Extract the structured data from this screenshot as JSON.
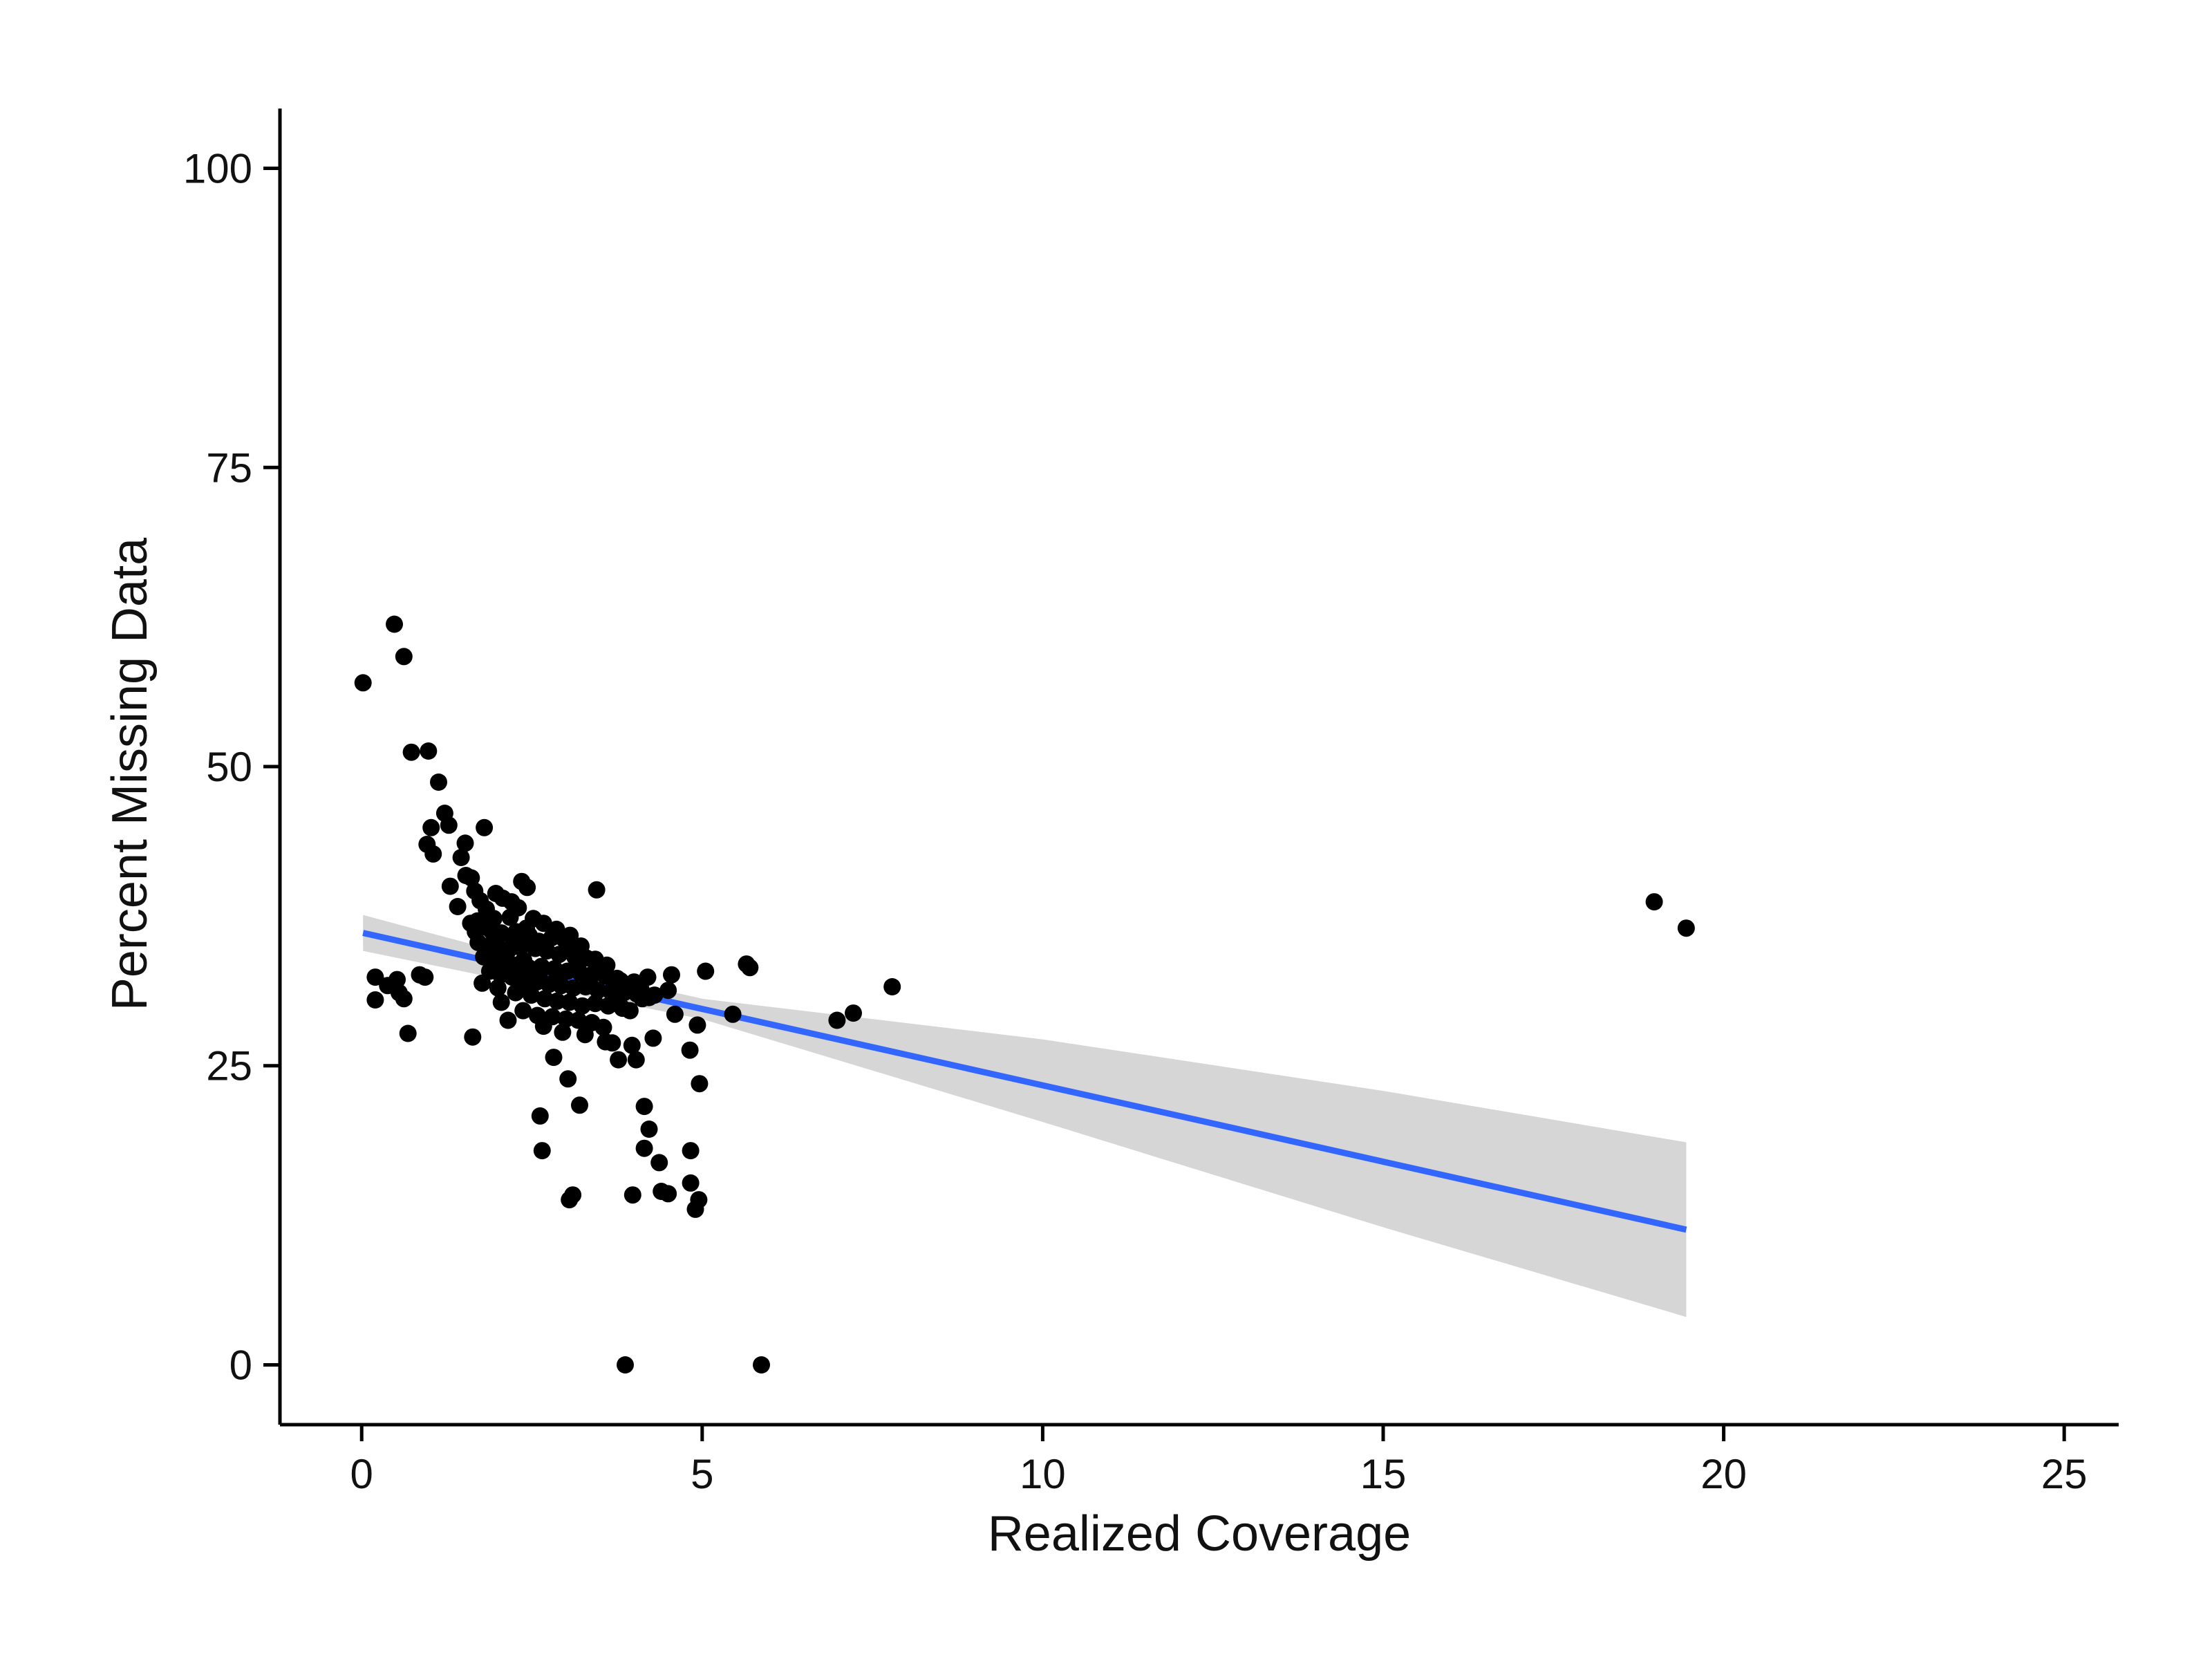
{
  "chart_data": {
    "type": "scatter",
    "title": "",
    "xlabel": "Realized Coverage",
    "ylabel": "Percent Missing Data",
    "xlim": [
      -1.2,
      25.8
    ],
    "ylim": [
      -5,
      105
    ],
    "x_ticks": [
      0,
      5,
      10,
      15,
      20,
      25
    ],
    "y_ticks": [
      0,
      25,
      50,
      75,
      100
    ],
    "grid": false,
    "legend": "none",
    "series": [
      {
        "kind": "points",
        "color": "#000000",
        "points": [
          [
            0.02,
            57.0
          ],
          [
            0.48,
            61.9
          ],
          [
            0.62,
            59.2
          ],
          [
            0.73,
            51.2
          ],
          [
            0.98,
            51.3
          ],
          [
            1.13,
            48.7
          ],
          [
            1.22,
            46.1
          ],
          [
            1.28,
            45.1
          ],
          [
            1.02,
            44.9
          ],
          [
            0.96,
            43.5
          ],
          [
            1.05,
            42.7
          ],
          [
            1.8,
            44.9
          ],
          [
            1.52,
            43.6
          ],
          [
            1.46,
            42.4
          ],
          [
            1.53,
            40.9
          ],
          [
            1.3,
            40.0
          ],
          [
            1.61,
            40.7
          ],
          [
            1.66,
            39.6
          ],
          [
            1.74,
            38.8
          ],
          [
            1.41,
            38.3
          ],
          [
            1.83,
            38.1
          ],
          [
            1.97,
            39.4
          ],
          [
            2.07,
            39.0
          ],
          [
            2.2,
            38.7
          ],
          [
            2.35,
            40.4
          ],
          [
            2.43,
            39.9
          ],
          [
            2.3,
            38.2
          ],
          [
            2.52,
            37.3
          ],
          [
            2.18,
            37.4
          ],
          [
            1.94,
            37.3
          ],
          [
            1.7,
            37.1
          ],
          [
            1.6,
            36.9
          ],
          [
            1.78,
            36.6
          ],
          [
            1.9,
            36.3
          ],
          [
            2.05,
            36.1
          ],
          [
            2.27,
            36.2
          ],
          [
            2.46,
            35.9
          ],
          [
            2.6,
            35.4
          ],
          [
            2.79,
            35.7
          ],
          [
            2.97,
            35.6
          ],
          [
            3.08,
            35.1
          ],
          [
            1.71,
            35.3
          ],
          [
            1.85,
            35.0
          ],
          [
            2.0,
            34.8
          ],
          [
            2.16,
            34.7
          ],
          [
            2.33,
            34.9
          ],
          [
            2.55,
            34.8
          ],
          [
            2.72,
            34.6
          ],
          [
            2.9,
            34.3
          ],
          [
            3.13,
            34.1
          ],
          [
            3.3,
            34.0
          ],
          [
            3.43,
            33.9
          ],
          [
            1.79,
            34.1
          ],
          [
            1.95,
            33.9
          ],
          [
            2.11,
            33.6
          ],
          [
            2.28,
            33.4
          ],
          [
            2.45,
            33.2
          ],
          [
            2.64,
            33.3
          ],
          [
            2.83,
            33.1
          ],
          [
            3.02,
            32.9
          ],
          [
            3.2,
            32.8
          ],
          [
            3.4,
            32.7
          ],
          [
            3.58,
            32.5
          ],
          [
            3.75,
            32.3
          ],
          [
            1.88,
            32.9
          ],
          [
            2.04,
            32.6
          ],
          [
            2.21,
            32.4
          ],
          [
            2.38,
            32.1
          ],
          [
            2.57,
            32.0
          ],
          [
            2.75,
            31.8
          ],
          [
            2.93,
            31.7
          ],
          [
            3.11,
            31.5
          ],
          [
            3.29,
            31.6
          ],
          [
            3.47,
            31.3
          ],
          [
            3.66,
            31.2
          ],
          [
            3.85,
            31.1
          ],
          [
            4.04,
            31.0
          ],
          [
            4.22,
            30.7
          ],
          [
            1.77,
            31.9
          ],
          [
            2.0,
            31.5
          ],
          [
            2.26,
            31.1
          ],
          [
            2.49,
            30.9
          ],
          [
            2.69,
            30.6
          ],
          [
            2.87,
            30.4
          ],
          [
            3.05,
            30.3
          ],
          [
            3.24,
            30.0
          ],
          [
            3.43,
            30.2
          ],
          [
            3.62,
            30.0
          ],
          [
            3.83,
            29.8
          ],
          [
            2.37,
            29.6
          ],
          [
            2.58,
            29.2
          ],
          [
            2.8,
            29.1
          ],
          [
            3.0,
            28.9
          ],
          [
            3.18,
            28.8
          ],
          [
            3.38,
            28.6
          ],
          [
            3.55,
            28.2
          ],
          [
            2.15,
            28.8
          ],
          [
            2.67,
            28.3
          ],
          [
            2.95,
            27.8
          ],
          [
            3.28,
            27.6
          ],
          [
            2.05,
            30.3
          ],
          [
            3.72,
            30.4
          ],
          [
            3.94,
            29.6
          ],
          [
            4.12,
            30.6
          ],
          [
            3.9,
            31.6
          ],
          [
            4.1,
            31.4
          ],
          [
            4.3,
            30.9
          ],
          [
            3.6,
            33.4
          ],
          [
            3.8,
            32.1
          ],
          [
            4.0,
            32.0
          ],
          [
            2.42,
            36.5
          ],
          [
            2.67,
            36.9
          ],
          [
            2.86,
            36.4
          ],
          [
            3.06,
            35.9
          ],
          [
            3.22,
            35.0
          ],
          [
            2.22,
            35.7
          ],
          [
            1.67,
            36.2
          ],
          [
            2.12,
            34.2
          ],
          [
            2.38,
            33.8
          ],
          [
            2.9,
            32.6
          ],
          [
            3.35,
            31.9
          ],
          [
            1.98,
            35.4
          ],
          [
            2.31,
            32.7
          ],
          [
            2.62,
            32.9
          ],
          [
            2.46,
            31.5
          ],
          [
            3.16,
            33.3
          ],
          [
            0.2,
            32.4
          ],
          [
            0.2,
            30.5
          ],
          [
            0.38,
            31.7
          ],
          [
            0.52,
            32.2
          ],
          [
            0.55,
            31.1
          ],
          [
            0.62,
            30.6
          ],
          [
            0.68,
            27.7
          ],
          [
            0.85,
            32.6
          ],
          [
            0.93,
            32.4
          ],
          [
            1.63,
            27.4
          ],
          [
            3.45,
            39.7
          ],
          [
            3.58,
            27.0
          ],
          [
            3.68,
            26.9
          ],
          [
            3.77,
            25.5
          ],
          [
            3.97,
            26.7
          ],
          [
            4.03,
            25.5
          ],
          [
            4.28,
            27.3
          ],
          [
            4.2,
            32.4
          ],
          [
            4.5,
            31.3
          ],
          [
            4.55,
            32.6
          ],
          [
            4.6,
            29.3
          ],
          [
            4.82,
            26.3
          ],
          [
            4.93,
            28.4
          ],
          [
            4.96,
            23.5
          ],
          [
            5.05,
            32.9
          ],
          [
            5.45,
            29.3
          ],
          [
            5.65,
            33.5
          ],
          [
            5.7,
            33.2
          ],
          [
            2.82,
            25.7
          ],
          [
            3.03,
            23.9
          ],
          [
            3.2,
            21.7
          ],
          [
            2.62,
            20.8
          ],
          [
            2.65,
            17.9
          ],
          [
            4.15,
            21.6
          ],
          [
            4.22,
            19.7
          ],
          [
            4.15,
            18.1
          ],
          [
            4.37,
            16.9
          ],
          [
            4.4,
            14.5
          ],
          [
            4.5,
            14.3
          ],
          [
            3.98,
            14.2
          ],
          [
            3.1,
            14.2
          ],
          [
            3.05,
            13.8
          ],
          [
            4.83,
            17.9
          ],
          [
            4.83,
            15.2
          ],
          [
            4.9,
            13.0
          ],
          [
            4.95,
            13.8
          ],
          [
            3.87,
            0.0
          ],
          [
            5.87,
            0.0
          ],
          [
            6.98,
            28.8
          ],
          [
            7.22,
            29.4
          ],
          [
            7.79,
            31.6
          ],
          [
            18.98,
            38.7
          ],
          [
            19.45,
            36.5
          ]
        ]
      },
      {
        "kind": "regression",
        "color": "#3366ff",
        "band_color": "#d6d6d6",
        "fit_line": [
          [
            0.02,
            36.1
          ],
          [
            19.45,
            11.3
          ]
        ],
        "confidence_band": {
          "x": [
            0.02,
            2.5,
            5.0,
            10.0,
            15.0,
            19.45
          ],
          "upper": [
            37.6,
            33.8,
            30.6,
            27.2,
            22.9,
            18.6
          ],
          "lower": [
            34.6,
            31.7,
            28.9,
            20.3,
            11.5,
            4.0
          ]
        }
      }
    ]
  }
}
